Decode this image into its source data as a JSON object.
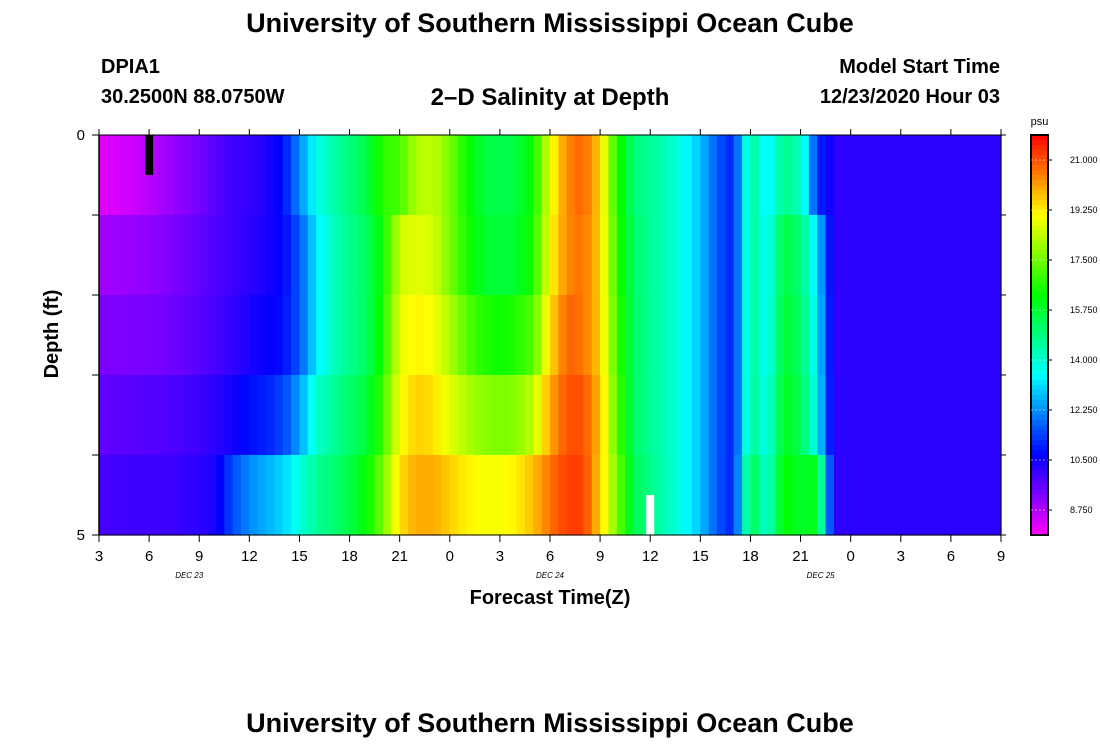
{
  "header": {
    "title": "University of Southern Mississippi Ocean Cube",
    "station": "DPIA1",
    "coords": "30.2500N 88.0750W",
    "plot_title": "2–D Salinity at Depth",
    "model_label": "Model Start Time",
    "model_time": "12/23/2020 Hour 03"
  },
  "footer": {
    "title": "University of Southern Mississippi Ocean Cube"
  },
  "chart_data": {
    "type": "heatmap",
    "title": "2–D Salinity at Depth",
    "xlabel": "Forecast Time(Z)",
    "ylabel": "Depth (ft)",
    "x_tick_labels": [
      "3",
      "6",
      "9",
      "12",
      "15",
      "18",
      "21",
      "0",
      "3",
      "6",
      "9",
      "12",
      "15",
      "18",
      "21",
      "0",
      "3",
      "6",
      "9"
    ],
    "date_labels": [
      {
        "label": "DEC 23",
        "hour_index": 9
      },
      {
        "label": "DEC 24",
        "hour_index": 45
      },
      {
        "label": "DEC 25",
        "hour_index": 72
      }
    ],
    "x_range_hours_from_start": [
      0,
      54
    ],
    "y_tick_labels": [
      "0",
      "5"
    ],
    "y_range": [
      0,
      5
    ],
    "depth_levels": 5,
    "colorbar": {
      "unit": "psu",
      "ticks": [
        "21.000",
        "19.250",
        "17.500",
        "15.750",
        "14.000",
        "12.250",
        "10.500",
        "8.750"
      ],
      "range": [
        7.875,
        21.875
      ]
    },
    "salinity_profiles": [
      {
        "hour": 0,
        "values": [
          8.2,
          8.9,
          9.3,
          9.6,
          9.9
        ]
      },
      {
        "hour": 2,
        "values": [
          8.4,
          9.0,
          9.3,
          9.7,
          10.0
        ]
      },
      {
        "hour": 4,
        "values": [
          8.9,
          9.2,
          9.4,
          9.8,
          10.0
        ]
      },
      {
        "hour": 6,
        "values": [
          9.4,
          9.6,
          9.7,
          10.0,
          10.2
        ]
      },
      {
        "hour": 7,
        "values": [
          9.7,
          9.8,
          9.9,
          10.2,
          10.4
        ]
      },
      {
        "hour": 8,
        "values": [
          10.0,
          10.0,
          10.1,
          10.5,
          11.5
        ]
      },
      {
        "hour": 9,
        "values": [
          10.1,
          10.2,
          10.4,
          10.8,
          12.2
        ]
      },
      {
        "hour": 10,
        "values": [
          10.3,
          10.4,
          10.6,
          11.0,
          12.6
        ]
      },
      {
        "hour": 11,
        "values": [
          10.8,
          10.7,
          10.8,
          11.4,
          13.0
        ]
      },
      {
        "hour": 12,
        "values": [
          12.2,
          11.6,
          11.6,
          12.4,
          13.8
        ]
      },
      {
        "hour": 13,
        "values": [
          13.6,
          13.2,
          13.2,
          14.0,
          14.6
        ]
      },
      {
        "hour": 14,
        "values": [
          14.4,
          14.2,
          14.2,
          14.6,
          15.0
        ]
      },
      {
        "hour": 15,
        "values": [
          14.9,
          14.7,
          14.7,
          15.1,
          15.5
        ]
      },
      {
        "hour": 16,
        "values": [
          15.5,
          15.2,
          15.2,
          15.6,
          16.2
        ]
      },
      {
        "hour": 17,
        "values": [
          16.8,
          16.4,
          16.6,
          17.0,
          17.6
        ]
      },
      {
        "hour": 18,
        "values": [
          17.0,
          18.5,
          18.8,
          19.0,
          19.4
        ]
      },
      {
        "hour": 19,
        "values": [
          18.2,
          18.8,
          19.2,
          19.6,
          20.0
        ]
      },
      {
        "hour": 20,
        "values": [
          18.4,
          18.6,
          19.0,
          19.4,
          20.0
        ]
      },
      {
        "hour": 21,
        "values": [
          17.6,
          17.6,
          18.2,
          18.8,
          19.6
        ]
      },
      {
        "hour": 22,
        "values": [
          16.4,
          16.6,
          17.2,
          18.2,
          19.2
        ]
      },
      {
        "hour": 23,
        "values": [
          15.6,
          15.8,
          16.6,
          17.8,
          19.0
        ]
      },
      {
        "hour": 24,
        "values": [
          15.4,
          15.6,
          16.4,
          17.6,
          19.0
        ]
      },
      {
        "hour": 25,
        "values": [
          15.6,
          15.8,
          16.6,
          17.8,
          19.2
        ]
      },
      {
        "hour": 26,
        "values": [
          16.4,
          16.6,
          17.2,
          18.4,
          19.8
        ]
      },
      {
        "hour": 27,
        "values": [
          18.8,
          19.0,
          19.4,
          20.0,
          20.6
        ]
      },
      {
        "hour": 28,
        "values": [
          20.4,
          20.4,
          20.8,
          21.0,
          21.2
        ]
      },
      {
        "hour": 29,
        "values": [
          20.8,
          20.6,
          20.6,
          21.0,
          21.2
        ]
      },
      {
        "hour": 30,
        "values": [
          19.6,
          19.6,
          19.6,
          19.8,
          19.6
        ]
      },
      {
        "hour": 31,
        "values": [
          16.6,
          16.8,
          17.0,
          17.2,
          17.6
        ]
      },
      {
        "hour": 32,
        "values": [
          15.0,
          15.2,
          15.2,
          15.2,
          15.4
        ]
      },
      {
        "hour": 33,
        "values": [
          14.6,
          14.6,
          14.6,
          14.6,
          14.8
        ]
      },
      {
        "hour": 34,
        "values": [
          14.2,
          14.2,
          14.2,
          14.2,
          14.2
        ]
      },
      {
        "hour": 35,
        "values": [
          13.6,
          13.6,
          13.6,
          13.6,
          13.6
        ]
      },
      {
        "hour": 36,
        "values": [
          12.8,
          12.8,
          12.8,
          12.8,
          12.8
        ]
      },
      {
        "hour": 37,
        "values": [
          11.6,
          11.6,
          11.6,
          11.6,
          11.6
        ]
      },
      {
        "hour": 38,
        "values": [
          11.0,
          11.0,
          11.0,
          11.0,
          11.0
        ]
      },
      {
        "hour": 39,
        "values": [
          14.8,
          14.8,
          14.8,
          14.8,
          15.6
        ]
      },
      {
        "hour": 40,
        "values": [
          13.2,
          13.4,
          13.4,
          13.6,
          13.8
        ]
      },
      {
        "hour": 41,
        "values": [
          14.8,
          15.6,
          15.8,
          16.0,
          16.4
        ]
      },
      {
        "hour": 42,
        "values": [
          14.2,
          15.0,
          15.2,
          15.4,
          15.8
        ]
      },
      {
        "hour": 43,
        "values": [
          11.2,
          13.0,
          13.2,
          13.4,
          16.0
        ]
      },
      {
        "hour": 44,
        "values": [
          10.2,
          10.2,
          10.2,
          10.2,
          10.2
        ]
      },
      {
        "hour": 54,
        "values": [
          10.2,
          10.2,
          10.2,
          10.2,
          10.2
        ]
      }
    ],
    "markers": [
      {
        "name": "black-marker",
        "hour": 3,
        "depth": [
          0,
          0.5
        ]
      },
      {
        "name": "white-marker",
        "hour": 33,
        "depth": [
          4.5,
          5
        ]
      }
    ]
  }
}
